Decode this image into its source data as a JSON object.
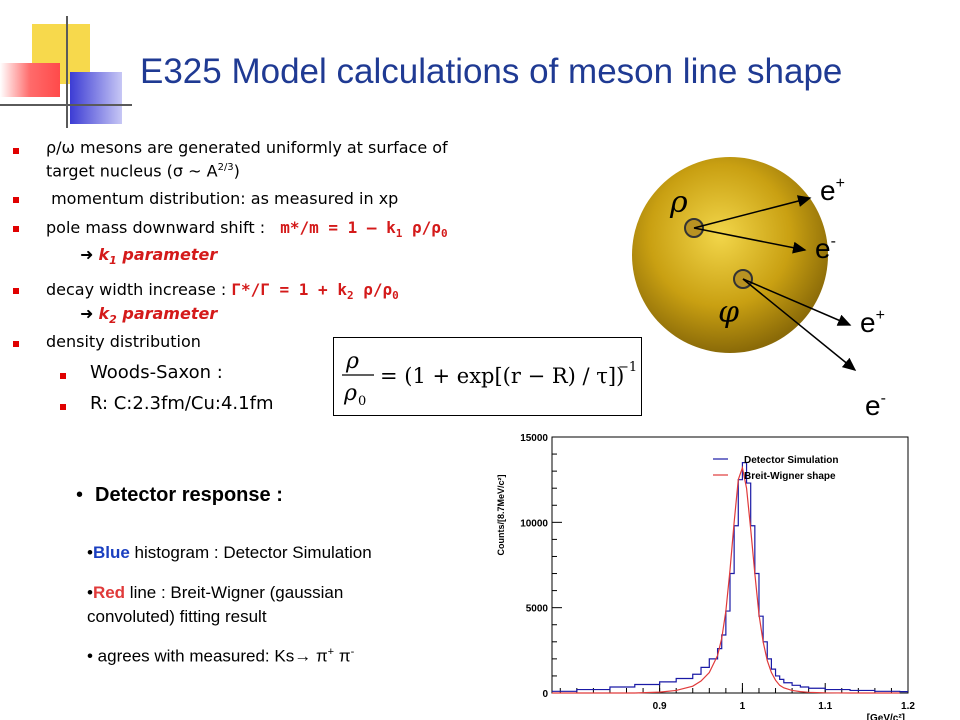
{
  "slide": {
    "title": "E325 Model calculations of meson line shape"
  },
  "bullets": {
    "b1_pre": "ρ/ω",
    "b1_text": " mesons are generated uniformly at surface of",
    "b1_line2_a": "target nucleus (",
    "b1_line2_b": "σ ~ A",
    "b1_line2_sup": "2/3",
    "b1_line2_c": ")",
    "b2": " momentum distribution: as measured in xp",
    "b3_label": "pole mass downward shift :",
    "b3_formula_a": "m*/m = 1 – k",
    "b3_formula_sub": "1",
    "b3_formula_b": " ρ/ρ",
    "b3_formula_sub2": "0",
    "b3_arrow": "",
    "b3_param_k": "k",
    "b3_param_sub": "1",
    "b3_param_text": " parameter",
    "b4_label": "decay width increase :",
    "b4_formula_a": "Γ*/Γ  = 1 + k",
    "b4_formula_sub": "2",
    "b4_formula_b": " ρ/ρ",
    "b4_formula_sub2": "0",
    "b4_param_k": "k",
    "b4_param_sub": "2",
    "b4_param_text": " parameter",
    "b5": "density distribution",
    "sub1": "Woods-Saxon :",
    "sub2": "R: C:2.3fm/Cu:4.1fm"
  },
  "formula": {
    "lhs_num": "ρ",
    "lhs_den": "ρ",
    "lhs_den_sub": "0",
    "rhs": "= (1 + exp[(r − R) / τ])",
    "exp": "−1"
  },
  "diagram": {
    "rho_label": "ρ",
    "phi_label": "φ",
    "eplus1": "e",
    "eplus1_sup": "+",
    "eminus1": "e",
    "eminus1_sup": "-",
    "eplus2": "e",
    "eplus2_sup": "+",
    "eminus2": "e",
    "eminus2_sup": "-"
  },
  "detector": {
    "heading": "Detector response :",
    "line1_blue": "Blue",
    "line1_rest": " histogram : Detector Simulation",
    "line2_red": "Red",
    "line2_rest": " line : Breit-Wigner (gaussian",
    "line3": "convoluted) fitting result",
    "line4_a": " agrees with  measured:  Ks",
    "line4_b": " π",
    "line4_sup1": "+",
    "line4_c": " π",
    "line4_sup2": "-"
  },
  "chart_data": {
    "type": "line",
    "xlabel": "[GeV/c²]",
    "ylabel": "Counts/[8.7MeV/c²]",
    "xlim": [
      0.77,
      1.2
    ],
    "ylim": [
      0,
      15000
    ],
    "xticks": [
      "0.9",
      "1",
      "1.1",
      "1.2"
    ],
    "yticks": [
      "0",
      "5000",
      "10000",
      "15000"
    ],
    "legend_position": "top-right",
    "series": [
      {
        "name": "Detector Simulation",
        "color": "#1a1aa6",
        "style": "histogram",
        "x": [
          0.77,
          0.8,
          0.84,
          0.87,
          0.9,
          0.92,
          0.94,
          0.95,
          0.96,
          0.97,
          0.975,
          0.98,
          0.985,
          0.99,
          0.995,
          1.0,
          1.005,
          1.01,
          1.015,
          1.02,
          1.025,
          1.03,
          1.035,
          1.04,
          1.045,
          1.05,
          1.06,
          1.07,
          1.08,
          1.1,
          1.13,
          1.16,
          1.19
        ],
        "values": [
          100,
          200,
          350,
          500,
          650,
          850,
          1100,
          1500,
          2000,
          2600,
          3400,
          4800,
          7000,
          9800,
          12500,
          13500,
          12300,
          9800,
          7000,
          4500,
          3000,
          2000,
          1400,
          1000,
          800,
          600,
          450,
          350,
          280,
          200,
          150,
          100,
          80
        ]
      },
      {
        "name": "Breit-Wigner shape",
        "color": "#e03a3a",
        "style": "curve",
        "x": [
          0.77,
          0.8,
          0.84,
          0.87,
          0.9,
          0.92,
          0.94,
          0.95,
          0.96,
          0.97,
          0.975,
          0.98,
          0.985,
          0.99,
          0.995,
          1.0,
          1.005,
          1.01,
          1.015,
          1.02,
          1.025,
          1.03,
          1.035,
          1.04,
          1.045,
          1.05,
          1.06,
          1.07,
          1.08,
          1.1,
          1.13,
          1.16,
          1.19
        ],
        "values": [
          0,
          0,
          0,
          0,
          50,
          150,
          400,
          700,
          1200,
          2200,
          3200,
          4800,
          7200,
          10000,
          12500,
          13200,
          12000,
          9600,
          7000,
          4600,
          3000,
          1900,
          1200,
          750,
          450,
          300,
          150,
          80,
          40,
          10,
          0,
          0,
          0
        ]
      }
    ],
    "colors": {
      "title": "#1f3a93",
      "accent_red": "#d41a1a",
      "nucleus": "#c9a012",
      "bullet": "#e00000"
    }
  }
}
